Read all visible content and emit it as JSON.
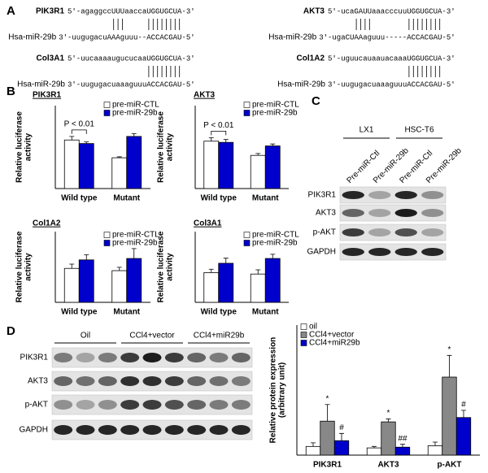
{
  "panel_labels": [
    "A",
    "B",
    "C",
    "D"
  ],
  "alignments": [
    {
      "gene": "PIK3R1",
      "target": "5'-agaggccUUUaaccaUGGUGCUA-3'",
      "mirna_name": "Hsa-miR-29b",
      "mirna": "3'-uugugacuAAAguuu--ACCACGAU-5'"
    },
    {
      "gene": "AKT3",
      "target": "5'-ucaGAUUaaacccuuUGGUGCUA-3'",
      "mirna_name": "Hsa-miR-29b",
      "mirna": "3'-ugaCUAAaguuu-----ACCACGAU-5'"
    },
    {
      "gene": "Col3A1",
      "target": "5'-uucaaaaugucucaaUGGUGCUA-3'",
      "mirna_name": "Hsa-miR-29b",
      "mirna": "3'-uugugacuaaaguuuACCACGAU-5'"
    },
    {
      "gene": "Col1A2",
      "target": "5'-uguucauaauacaaaUGGUGCUA-3'",
      "mirna_name": "Hsa-miR-29b",
      "mirna": "3'-uugugacuaaaguuuACCACGAU-5'"
    }
  ],
  "blot_c": {
    "groups": [
      "LX1",
      "HSC-T6"
    ],
    "lanes": [
      "Pre-miR-Ctl",
      "Pre-miR-29b",
      "Pre-miR-Ctl",
      "Pre-miR-29b"
    ],
    "rows": [
      "PIK3R1",
      "AKT3",
      "p-AKT",
      "GAPDH"
    ]
  },
  "blot_d": {
    "groups": [
      "Oil",
      "CCl4+vector",
      "CCl4+miR29b"
    ],
    "rows": [
      "PIK3R1",
      "AKT3",
      "p-AKT",
      "GAPDH"
    ]
  },
  "chart_data": [
    {
      "type": "bar",
      "title": "PIK3R1",
      "ylabel": [
        "Relative luciferase",
        "activity"
      ],
      "annotation": "P < 0.01",
      "categories": [
        "Wild type",
        "Mutant"
      ],
      "ylim": [
        0,
        35
      ],
      "series": [
        {
          "name": "pre-miR-CTL",
          "color": "#ffffff",
          "values": [
            20.5,
            13
          ],
          "errors": [
            1.5,
            0.4
          ]
        },
        {
          "name": "pre-miR-29b",
          "color": "#0000cc",
          "values": [
            19,
            22
          ],
          "errors": [
            0.7,
            1.2
          ]
        }
      ]
    },
    {
      "type": "bar",
      "title": "AKT3",
      "ylabel": [
        "Relative luciferase",
        "activity"
      ],
      "annotation": "P < 0.01",
      "categories": [
        "Wild type",
        "Mutant"
      ],
      "ylim": [
        0,
        35
      ],
      "series": [
        {
          "name": "pre-miR-CTL",
          "color": "#ffffff",
          "values": [
            20,
            14
          ],
          "errors": [
            1.5,
            0.8
          ]
        },
        {
          "name": "pre-miR-29b",
          "color": "#0000cc",
          "values": [
            19.5,
            18
          ],
          "errors": [
            1.2,
            0.8
          ]
        }
      ]
    },
    {
      "type": "bar",
      "title": "Col1A2",
      "ylabel": [
        "Relative luciferase",
        "activity"
      ],
      "categories": [
        "Wild type",
        "Mutant"
      ],
      "ylim": [
        0,
        25
      ],
      "series": [
        {
          "name": "pre-miR-CTL",
          "color": "#ffffff",
          "values": [
            12,
            11.2
          ],
          "errors": [
            1.5,
            1.2
          ]
        },
        {
          "name": "pre-miR-29b",
          "color": "#0000cc",
          "values": [
            15,
            15.5
          ],
          "errors": [
            1.8,
            3.5
          ]
        }
      ]
    },
    {
      "type": "bar",
      "title": "Col3A1",
      "ylabel": [
        "Relative luciferase",
        "activity"
      ],
      "categories": [
        "Wild type",
        "Mutant"
      ],
      "ylim": [
        0,
        25
      ],
      "series": [
        {
          "name": "pre-miR-CTL",
          "color": "#ffffff",
          "values": [
            10.5,
            10
          ],
          "errors": [
            1.2,
            1.5
          ]
        },
        {
          "name": "pre-miR-29b",
          "color": "#0000cc",
          "values": [
            13.8,
            15.5
          ],
          "errors": [
            1.8,
            1.5
          ]
        }
      ]
    },
    {
      "type": "bar",
      "ylabel": [
        "Relative protein expression",
        "(arbitrary unit)"
      ],
      "categories": [
        "PIK3R1",
        "AKT3",
        "p-AKT"
      ],
      "ylim": [
        0,
        18
      ],
      "series": [
        {
          "name": "oil",
          "color": "#ffffff",
          "values": [
            1.2,
            1,
            1.3
          ],
          "errors": [
            0.5,
            0.2,
            0.5
          ]
        },
        {
          "name": "CCl4+vector",
          "color": "#888888",
          "values": [
            4.7,
            4.6,
            10.8
          ],
          "errors": [
            2.3,
            0.4,
            3
          ],
          "marks": [
            "*",
            "*",
            "*"
          ]
        },
        {
          "name": "CCl4+miR29b",
          "color": "#0000cc",
          "values": [
            2,
            1.1,
            5.2
          ],
          "errors": [
            1,
            0.4,
            1
          ],
          "marks": [
            "#",
            "##",
            "#"
          ]
        }
      ]
    }
  ]
}
